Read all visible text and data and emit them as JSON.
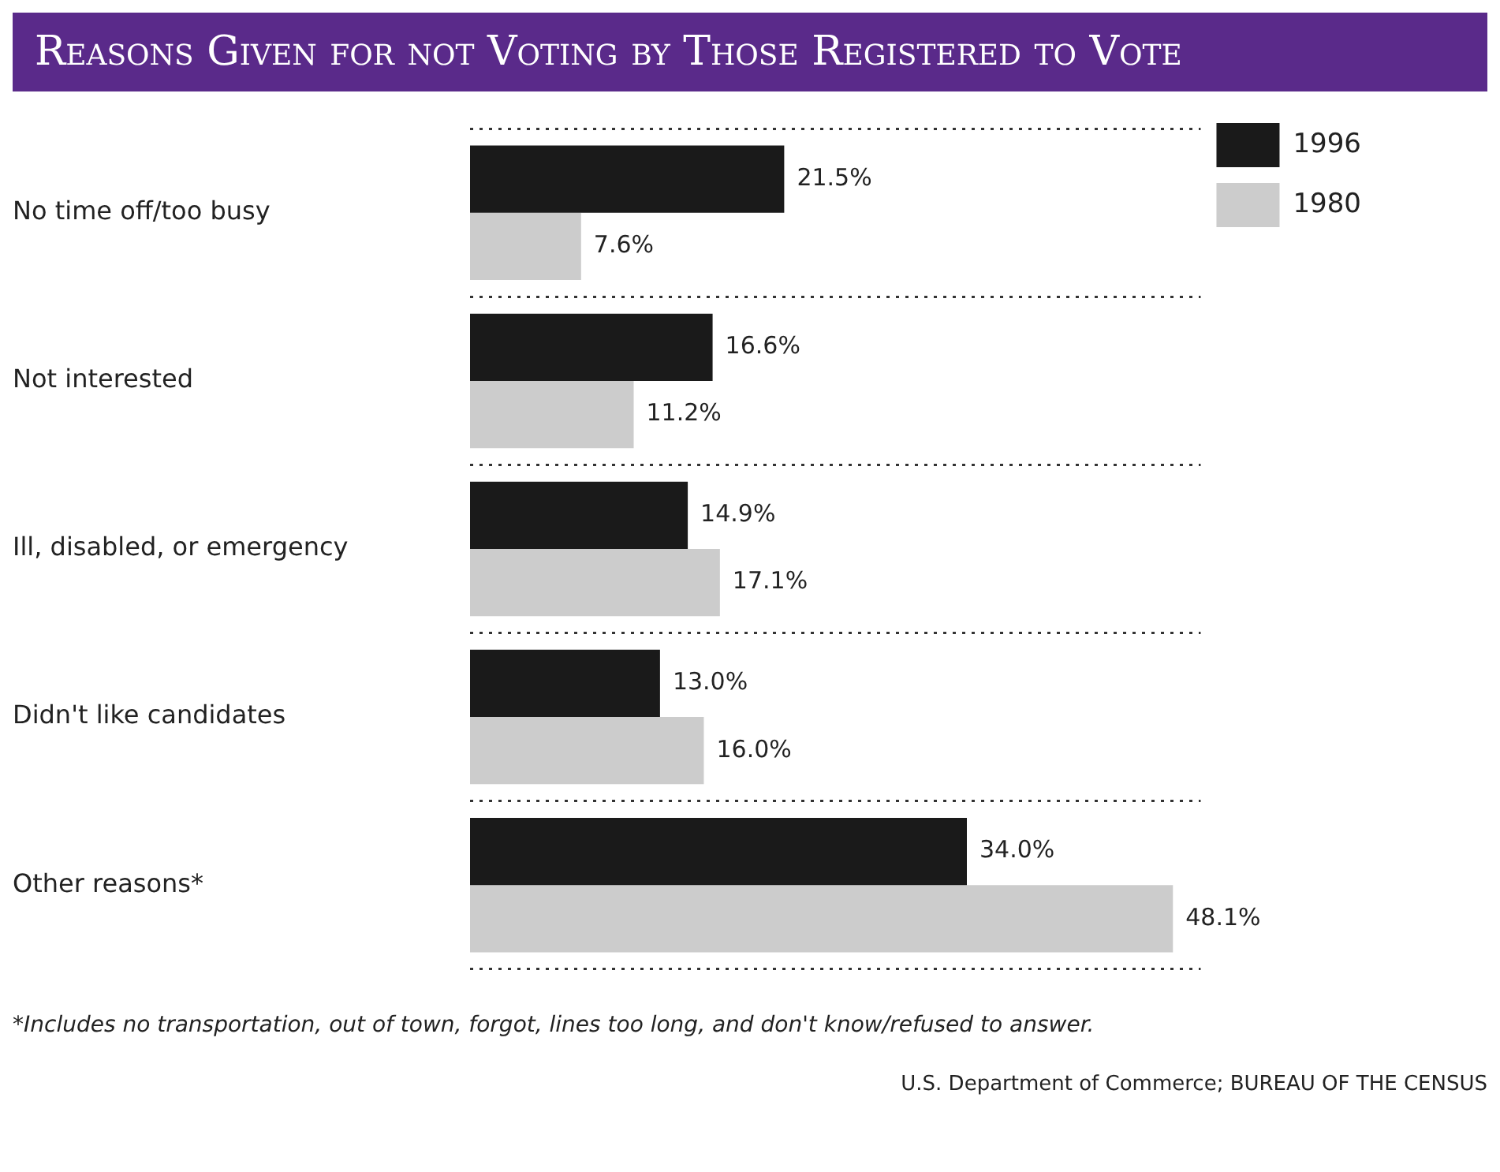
{
  "chart_data": {
    "type": "bar",
    "orientation": "horizontal",
    "title": "Reasons Given for not Voting by Those Registered to Vote",
    "categories": [
      "No time off/too busy",
      "Not interested",
      "Ill, disabled, or emergency",
      "Didn't like candidates",
      "Other reasons*"
    ],
    "series": [
      {
        "name": "1996",
        "color": "#1a1a1a",
        "values": [
          21.5,
          16.6,
          14.9,
          13.0,
          34.0
        ],
        "value_labels": [
          "21.5%",
          "16.6%",
          "14.9%",
          "13.0%",
          "34.0%"
        ]
      },
      {
        "name": "1980",
        "color": "#cccccc",
        "values": [
          7.6,
          11.2,
          17.1,
          16.0,
          48.1
        ],
        "value_labels": [
          "7.6%",
          "11.2%",
          "17.1%",
          "16.0%",
          "48.1%"
        ]
      }
    ],
    "legend": "top right",
    "grid": "y",
    "annotations": [
      "*Includes no transportation, out of town, forgot, lines too long, and don't know/refused to answer.",
      "U.S. Department of Commerce; BUREAU OF THE CENSUS"
    ]
  }
}
